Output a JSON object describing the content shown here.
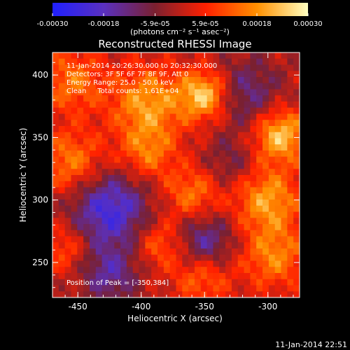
{
  "chart_data": {
    "type": "heatmap",
    "title": "Reconstructed RHESSI Image",
    "xlabel": "Heliocentric X (arcsec)",
    "ylabel": "Heliocentric Y (arcsec)",
    "xlim": [
      -470,
      -275
    ],
    "ylim": [
      222,
      418
    ],
    "x_ticks": [
      -450,
      -400,
      -350,
      -300
    ],
    "y_ticks": [
      250,
      300,
      350,
      400
    ],
    "colorbar": {
      "range": [
        -0.0003,
        0.0003
      ],
      "tick_values": [
        -0.0003,
        -0.00018,
        -5.9e-05,
        5.9e-05,
        0.00018,
        0.0003
      ],
      "tick_labels": [
        "-0.00030",
        "-0.00018",
        "-5.9e-05",
        "5.9e-05",
        "0.00018",
        "0.00030"
      ],
      "units": "(photons cm⁻² s⁻¹ asec⁻²)",
      "colors": [
        "#2020ff",
        "#5a30c0",
        "#7a2030",
        "#ff2000",
        "#ff9000",
        "#ffffc0"
      ]
    },
    "annotations": [
      "11-Jan-2014 20:26:30.000 to 20:32:30.000",
      "Detectors: 3F 5F 6F 7F 8F 9F, Att 0",
      "Energy Range: 25.0 - 50.0 keV",
      "Clean     Total counts: 1.61E+04"
    ],
    "peak_label": "Position of Peak = [-350,384]",
    "timestamp": "11-Jan-2014 22:51",
    "blobs": [
      {
        "x": -395,
        "y": 378,
        "amp": 1.2,
        "s": 20
      },
      {
        "x": -350,
        "y": 384,
        "amp": 1.6,
        "s": 14
      },
      {
        "x": -290,
        "y": 352,
        "amp": 1.5,
        "s": 15
      },
      {
        "x": -455,
        "y": 395,
        "amp": 0.9,
        "s": 18
      },
      {
        "x": -455,
        "y": 330,
        "amp": 1.0,
        "s": 18
      },
      {
        "x": -395,
        "y": 338,
        "amp": 0.9,
        "s": 16
      },
      {
        "x": -360,
        "y": 305,
        "amp": 0.9,
        "s": 15
      },
      {
        "x": -300,
        "y": 300,
        "amp": 1.2,
        "s": 18
      },
      {
        "x": -295,
        "y": 255,
        "amp": 1.0,
        "s": 18
      },
      {
        "x": -352,
        "y": 240,
        "amp": 0.9,
        "s": 16
      },
      {
        "x": -385,
        "y": 265,
        "amp": 0.8,
        "s": 14
      },
      {
        "x": -460,
        "y": 262,
        "amp": 0.7,
        "s": 14
      },
      {
        "x": -425,
        "y": 292,
        "amp": -1.4,
        "s": 22
      },
      {
        "x": -350,
        "y": 265,
        "amp": -1.1,
        "s": 16
      },
      {
        "x": -318,
        "y": 385,
        "amp": -0.8,
        "s": 20
      },
      {
        "x": -425,
        "y": 240,
        "amp": -0.9,
        "s": 16
      },
      {
        "x": -330,
        "y": 330,
        "amp": -0.5,
        "s": 14
      }
    ]
  }
}
